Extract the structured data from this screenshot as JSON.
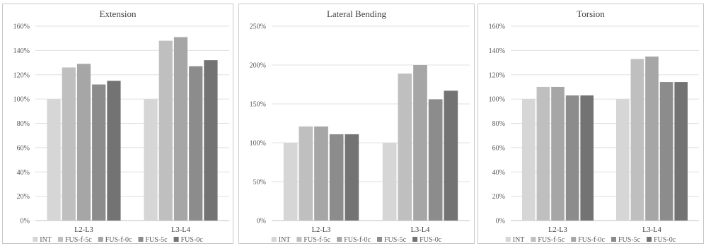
{
  "colors": [
    "#d6d6d6",
    "#bfbfbf",
    "#a6a6a6",
    "#8c8c8c",
    "#737373"
  ],
  "chart_data": [
    {
      "type": "bar",
      "title": "Extension",
      "categories": [
        "L2-L3",
        "L3-L4"
      ],
      "series": [
        {
          "name": "INT",
          "values": [
            100,
            100
          ]
        },
        {
          "name": "FUS-f-5c",
          "values": [
            126,
            148
          ]
        },
        {
          "name": "FUS-f-0c",
          "values": [
            129,
            151
          ]
        },
        {
          "name": "FUS-5c",
          "values": [
            112,
            127
          ]
        },
        {
          "name": "FUS-0c",
          "values": [
            115,
            132
          ]
        }
      ],
      "ylim": [
        0,
        160
      ],
      "yticks": [
        "0%",
        "20%",
        "40%",
        "60%",
        "80%",
        "100%",
        "120%",
        "140%",
        "160%"
      ],
      "grid": true,
      "legend": "bottom"
    },
    {
      "type": "bar",
      "title": "Lateral Bending",
      "categories": [
        "L2-L3",
        "L3-L4"
      ],
      "series": [
        {
          "name": "INT",
          "values": [
            100,
            100
          ]
        },
        {
          "name": "FUS-f-5c",
          "values": [
            121,
            189
          ]
        },
        {
          "name": "FUS-f-0c",
          "values": [
            121,
            200
          ]
        },
        {
          "name": "FUS-5c",
          "values": [
            111,
            156
          ]
        },
        {
          "name": "FUS-0c",
          "values": [
            111,
            167
          ]
        }
      ],
      "ylim": [
        0,
        250
      ],
      "yticks": [
        "0%",
        "50%",
        "100%",
        "150%",
        "200%",
        "250%"
      ],
      "grid": true,
      "legend": "bottom"
    },
    {
      "type": "bar",
      "title": "Torsion",
      "categories": [
        "L2-L3",
        "L3-L4"
      ],
      "series": [
        {
          "name": "INT",
          "values": [
            100,
            100
          ]
        },
        {
          "name": "FUS-f-5c",
          "values": [
            110,
            133
          ]
        },
        {
          "name": "FUS-f-0c",
          "values": [
            110,
            135
          ]
        },
        {
          "name": "FUS-5c",
          "values": [
            103,
            114
          ]
        },
        {
          "name": "FUS-0c",
          "values": [
            103,
            114
          ]
        }
      ],
      "ylim": [
        0,
        160
      ],
      "yticks": [
        "0%",
        "20%",
        "40%",
        "60%",
        "80%",
        "100%",
        "120%",
        "140%",
        "160%"
      ],
      "grid": true,
      "legend": "bottom"
    }
  ]
}
